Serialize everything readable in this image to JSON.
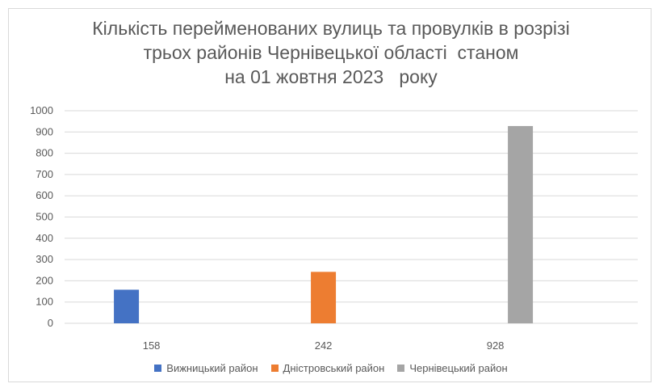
{
  "chart_data": {
    "type": "bar",
    "title": [
      "Кількість перейменованих вулиць та провулків в розрізі",
      "трьох районів Чернівецької області  станом",
      "на 01 жовтня 2023   року"
    ],
    "categories": [
      "158",
      "242",
      "928"
    ],
    "series": [
      {
        "name": "Вижницький район",
        "values": [
          158,
          null,
          null
        ],
        "color": "#4472c4"
      },
      {
        "name": "Дністровський район",
        "values": [
          null,
          242,
          null
        ],
        "color": "#ed7d31"
      },
      {
        "name": "Чернівецький район",
        "values": [
          null,
          null,
          928
        ],
        "color": "#a5a5a5"
      }
    ],
    "yticks": [
      "0",
      "100",
      "200",
      "300",
      "400",
      "500",
      "600",
      "700",
      "800",
      "900",
      "1000"
    ],
    "ylim": [
      0,
      1000
    ],
    "grid": true,
    "legend_position": "bottom"
  }
}
